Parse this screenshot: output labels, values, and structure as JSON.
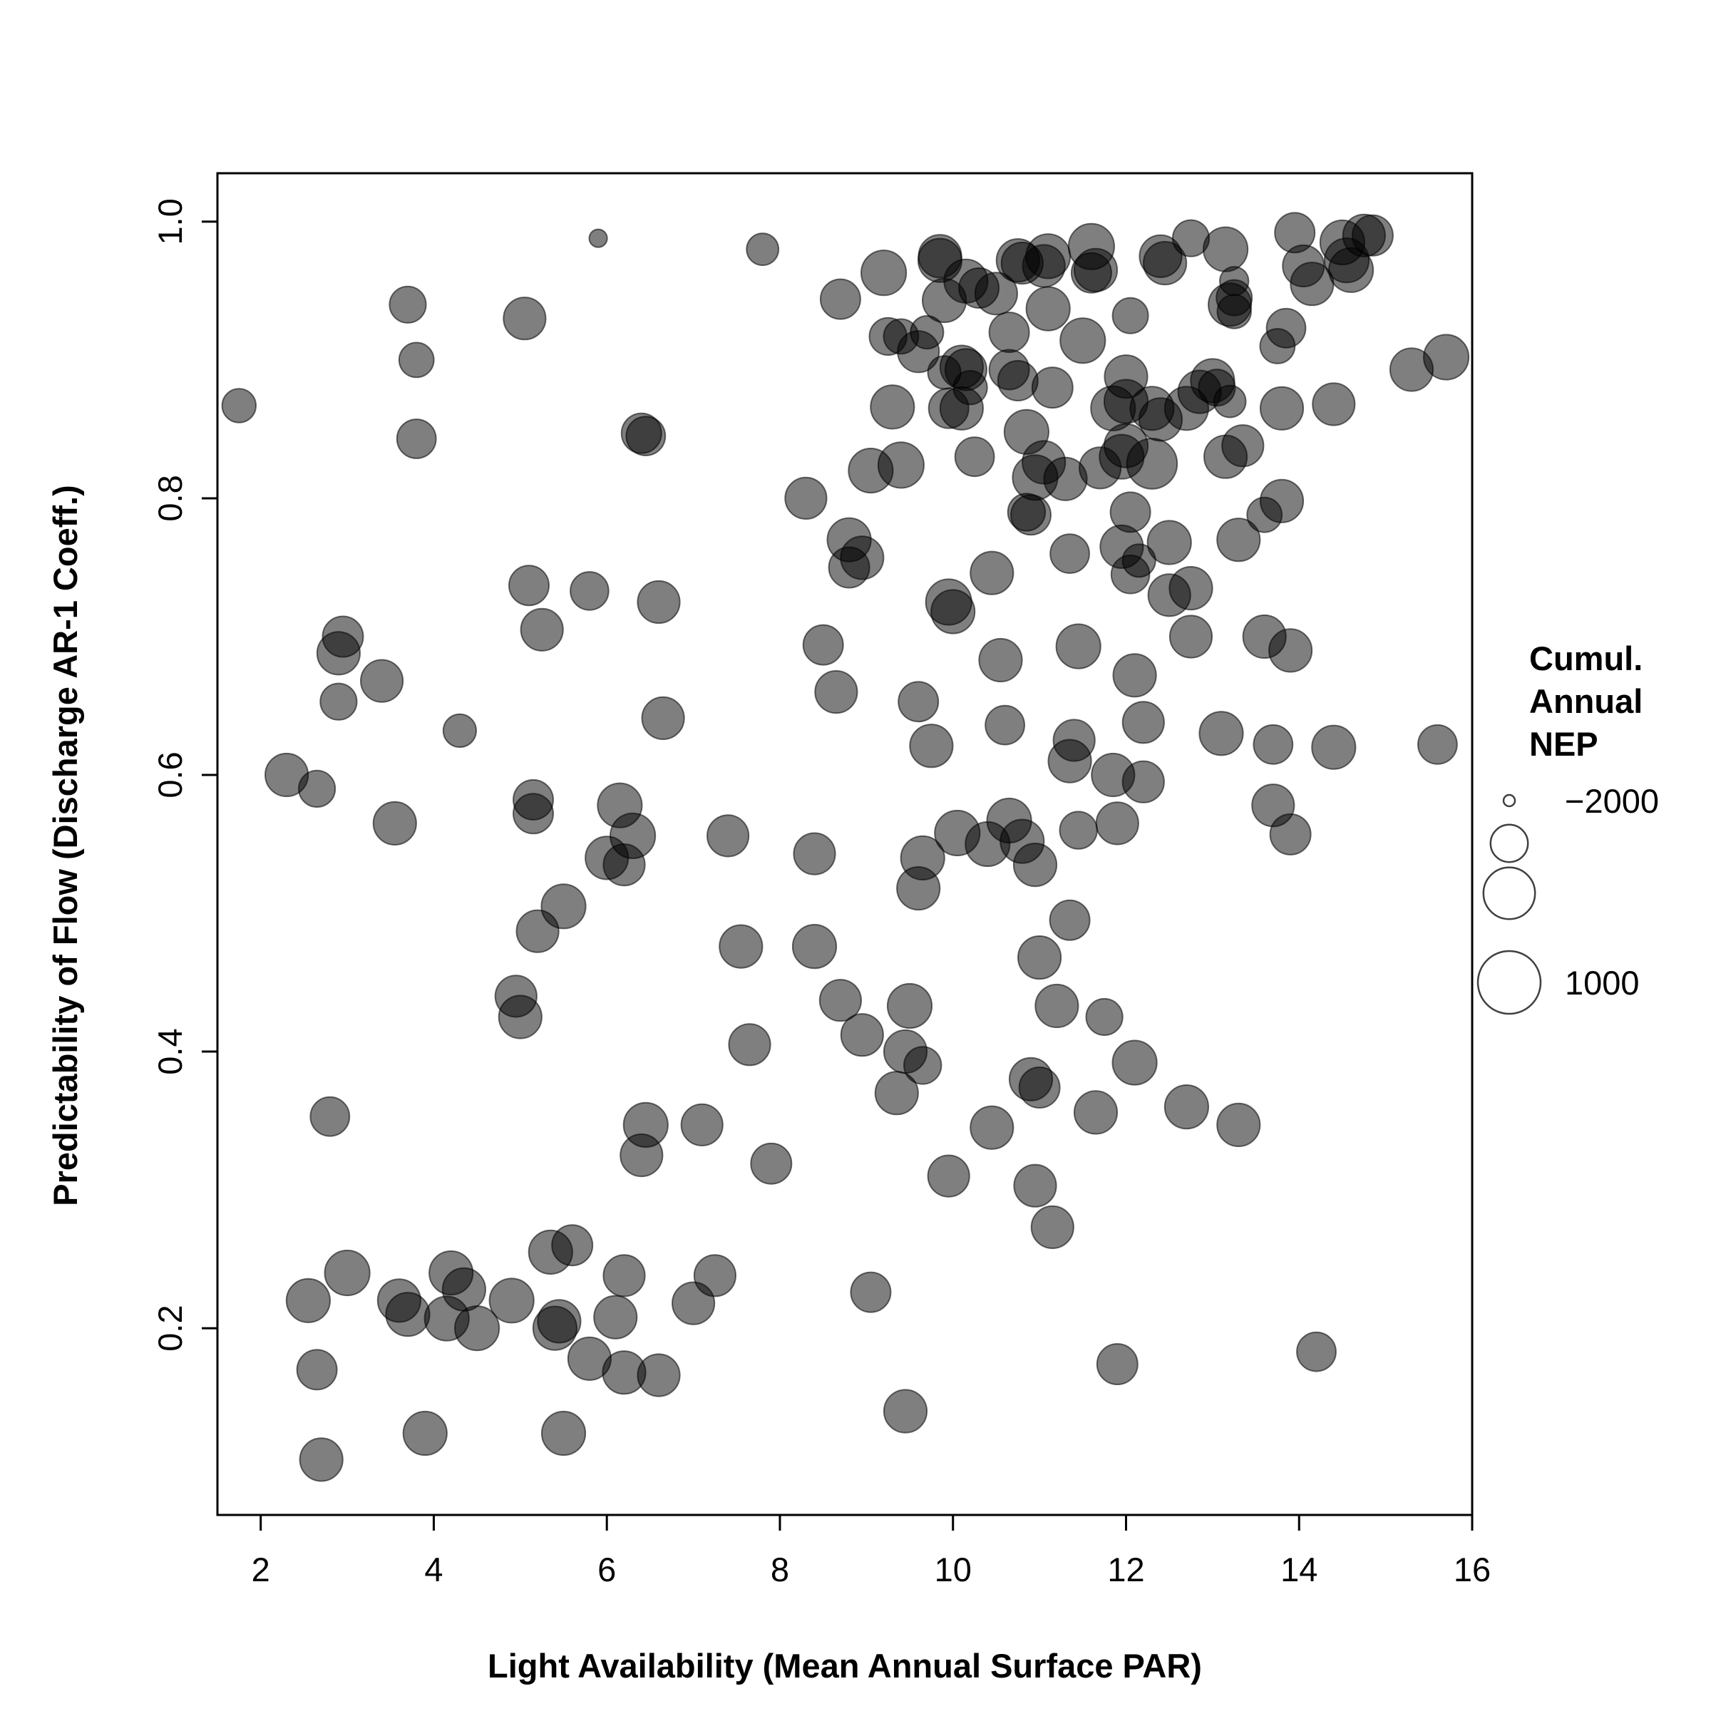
{
  "chart_data": {
    "type": "scatter",
    "title": "",
    "xlabel": "Light Availability (Mean Annual Surface PAR)",
    "ylabel": "Predictability of Flow (Discharge AR-1 Coeff.)",
    "xlim": [
      1.5,
      16.0
    ],
    "ylim": [
      0.065,
      1.035
    ],
    "x_ticks": [
      2,
      4,
      6,
      8,
      10,
      12,
      14,
      16
    ],
    "x_tick_labels": [
      "2",
      "4",
      "6",
      "8",
      "10",
      "12",
      "14",
      "16"
    ],
    "y_ticks": [
      0.2,
      0.4,
      0.6,
      0.8,
      1.0
    ],
    "y_tick_labels": [
      "0.2",
      "0.4",
      "0.6",
      "0.8",
      "1.0"
    ],
    "grid": false,
    "marker_color": "#000000",
    "marker_opacity": 0.5,
    "size_variable": "Cumulative Annual NEP",
    "size_range": [
      -2000,
      1000
    ],
    "legend": {
      "title_lines": [
        "Cumul.",
        "Annual",
        "NEP"
      ],
      "placement": "right",
      "entries": [
        {
          "value": -2000,
          "label": "−2000"
        },
        {
          "value": -1000,
          "label": ""
        },
        {
          "value": 0,
          "label": ""
        },
        {
          "value": 1000,
          "label": "1000"
        }
      ]
    },
    "points": [
      [
        1.75,
        0.867,
        -1200
      ],
      [
        2.3,
        0.6,
        -650
      ],
      [
        2.65,
        0.59,
        -1050
      ],
      [
        2.55,
        0.22,
        -600
      ],
      [
        2.65,
        0.17,
        -850
      ],
      [
        2.7,
        0.105,
        -650
      ],
      [
        3.0,
        0.24,
        -500
      ],
      [
        2.8,
        0.353,
        -900
      ],
      [
        2.9,
        0.688,
        -650
      ],
      [
        2.95,
        0.7,
        -800
      ],
      [
        2.9,
        0.653,
        -1050
      ],
      [
        3.4,
        0.668,
        -700
      ],
      [
        3.55,
        0.565,
        -650
      ],
      [
        3.7,
        0.94,
        -1050
      ],
      [
        3.8,
        0.9,
        -1150
      ],
      [
        3.8,
        0.843,
        -900
      ],
      [
        3.6,
        0.22,
        -650
      ],
      [
        3.7,
        0.21,
        -600
      ],
      [
        3.9,
        0.124,
        -600
      ],
      [
        4.15,
        0.207,
        -550
      ],
      [
        4.2,
        0.24,
        -600
      ],
      [
        4.35,
        0.228,
        -650
      ],
      [
        4.5,
        0.2,
        -550
      ],
      [
        4.3,
        0.632,
        -1250
      ],
      [
        4.9,
        0.22,
        -550
      ],
      [
        4.95,
        0.44,
        -750
      ],
      [
        5.0,
        0.425,
        -650
      ],
      [
        5.05,
        0.93,
        -700
      ],
      [
        5.1,
        0.737,
        -850
      ],
      [
        5.25,
        0.705,
        -700
      ],
      [
        5.15,
        0.582,
        -850
      ],
      [
        5.15,
        0.572,
        -850
      ],
      [
        5.2,
        0.487,
        -700
      ],
      [
        5.5,
        0.505,
        -550
      ],
      [
        5.35,
        0.255,
        -600
      ],
      [
        5.4,
        0.2,
        -600
      ],
      [
        5.45,
        0.205,
        -650
      ],
      [
        5.5,
        0.124,
        -600
      ],
      [
        5.6,
        0.26,
        -800
      ],
      [
        5.8,
        0.733,
        -950
      ],
      [
        5.8,
        0.178,
        -650
      ],
      [
        5.9,
        0.988,
        -1850
      ],
      [
        6.0,
        0.54,
        -650
      ],
      [
        6.1,
        0.208,
        -650
      ],
      [
        6.15,
        0.578,
        -550
      ],
      [
        6.2,
        0.535,
        -750
      ],
      [
        6.3,
        0.556,
        -500
      ],
      [
        6.2,
        0.238,
        -750
      ],
      [
        6.2,
        0.168,
        -650
      ],
      [
        6.4,
        0.847,
        -850
      ],
      [
        6.45,
        0.845,
        -900
      ],
      [
        6.45,
        0.347,
        -550
      ],
      [
        6.4,
        0.325,
        -700
      ],
      [
        6.6,
        0.166,
        -700
      ],
      [
        6.6,
        0.725,
        -700
      ],
      [
        6.65,
        0.641,
        -700
      ],
      [
        7.0,
        0.218,
        -700
      ],
      [
        7.1,
        0.347,
        -750
      ],
      [
        7.25,
        0.238,
        -750
      ],
      [
        7.4,
        0.556,
        -750
      ],
      [
        7.55,
        0.476,
        -650
      ],
      [
        7.65,
        0.405,
        -750
      ],
      [
        7.8,
        0.98,
        -1300
      ],
      [
        7.9,
        0.319,
        -800
      ],
      [
        8.3,
        0.8,
        -750
      ],
      [
        8.4,
        0.476,
        -600
      ],
      [
        8.4,
        0.543,
        -750
      ],
      [
        8.5,
        0.694,
        -850
      ],
      [
        8.65,
        0.66,
        -700
      ],
      [
        8.7,
        0.944,
        -850
      ],
      [
        8.7,
        0.437,
        -750
      ],
      [
        8.8,
        0.77,
        -600
      ],
      [
        8.8,
        0.75,
        -800
      ],
      [
        8.95,
        0.757,
        -650
      ],
      [
        8.95,
        0.412,
        -700
      ],
      [
        9.05,
        0.82,
        -550
      ],
      [
        9.05,
        0.226,
        -850
      ],
      [
        9.2,
        0.963,
        -500
      ],
      [
        9.25,
        0.917,
        -1000
      ],
      [
        9.3,
        0.866,
        -600
      ],
      [
        9.35,
        0.37,
        -650
      ],
      [
        9.4,
        0.824,
        -450
      ],
      [
        9.4,
        0.917,
        -1150
      ],
      [
        9.45,
        0.4,
        -650
      ],
      [
        9.5,
        0.433,
        -550
      ],
      [
        9.45,
        0.14,
        -650
      ],
      [
        9.6,
        0.518,
        -650
      ],
      [
        9.6,
        0.653,
        -850
      ],
      [
        9.65,
        0.54,
        -600
      ],
      [
        9.65,
        0.39,
        -1000
      ],
      [
        9.6,
        0.906,
        -750
      ],
      [
        9.7,
        0.92,
        -1250
      ],
      [
        9.75,
        0.621,
        -650
      ],
      [
        9.85,
        0.975,
        -650
      ],
      [
        9.85,
        0.972,
        -600
      ],
      [
        9.9,
        0.943,
        -600
      ],
      [
        9.9,
        0.891,
        -1250
      ],
      [
        9.95,
        0.865,
        -850
      ],
      [
        9.95,
        0.725,
        -450
      ],
      [
        10.0,
        0.718,
        -600
      ],
      [
        9.95,
        0.31,
        -750
      ],
      [
        10.05,
        0.558,
        -500
      ],
      [
        10.1,
        0.895,
        -650
      ],
      [
        10.1,
        0.865,
        -650
      ],
      [
        10.15,
        0.957,
        -600
      ],
      [
        10.15,
        0.893,
        -750
      ],
      [
        10.2,
        0.88,
        -1200
      ],
      [
        10.25,
        0.83,
        -900
      ],
      [
        10.3,
        0.952,
        -850
      ],
      [
        10.4,
        0.55,
        -550
      ],
      [
        10.45,
        0.746,
        -650
      ],
      [
        10.45,
        0.345,
        -650
      ],
      [
        10.5,
        0.948,
        -700
      ],
      [
        10.55,
        0.683,
        -650
      ],
      [
        10.6,
        0.636,
        -900
      ],
      [
        10.65,
        0.92,
        -850
      ],
      [
        10.65,
        0.893,
        -850
      ],
      [
        10.65,
        0.567,
        -550
      ],
      [
        10.75,
        0.972,
        -650
      ],
      [
        10.75,
        0.885,
        -850
      ],
      [
        10.8,
        0.552,
        -600
      ],
      [
        10.8,
        0.97,
        -750
      ],
      [
        10.85,
        0.848,
        -550
      ],
      [
        10.85,
        0.79,
        -1000
      ],
      [
        10.9,
        0.788,
        -850
      ],
      [
        10.9,
        0.38,
        -650
      ],
      [
        10.95,
        0.815,
        -500
      ],
      [
        10.95,
        0.535,
        -650
      ],
      [
        10.95,
        0.303,
        -700
      ],
      [
        11.0,
        0.468,
        -650
      ],
      [
        11.0,
        0.374,
        -800
      ],
      [
        11.05,
        0.968,
        -700
      ],
      [
        11.05,
        0.826,
        -650
      ],
      [
        11.1,
        0.937,
        -600
      ],
      [
        11.1,
        0.975,
        -550
      ],
      [
        11.15,
        0.88,
        -800
      ],
      [
        11.15,
        0.273,
        -700
      ],
      [
        11.2,
        0.433,
        -650
      ],
      [
        11.3,
        0.814,
        -650
      ],
      [
        11.35,
        0.495,
        -850
      ],
      [
        11.35,
        0.61,
        -650
      ],
      [
        11.35,
        0.76,
        -900
      ],
      [
        11.4,
        0.625,
        -750
      ],
      [
        11.45,
        0.693,
        -550
      ],
      [
        11.45,
        0.56,
        -1000
      ],
      [
        11.5,
        0.914,
        -500
      ],
      [
        11.6,
        0.963,
        -850
      ],
      [
        11.6,
        0.982,
        -450
      ],
      [
        11.65,
        0.356,
        -650
      ],
      [
        11.65,
        0.965,
        -650
      ],
      [
        11.7,
        0.822,
        -750
      ],
      [
        11.75,
        0.425,
        -1050
      ],
      [
        11.85,
        0.6,
        -650
      ],
      [
        11.85,
        0.865,
        -550
      ],
      [
        11.9,
        0.565,
        -700
      ],
      [
        11.9,
        0.174,
        -800
      ],
      [
        11.95,
        0.83,
        -550
      ],
      [
        11.95,
        0.765,
        -650
      ],
      [
        12.0,
        0.888,
        -650
      ],
      [
        12.0,
        0.838,
        -600
      ],
      [
        12.0,
        0.87,
        -600
      ],
      [
        12.05,
        0.79,
        -850
      ],
      [
        12.05,
        0.745,
        -950
      ],
      [
        12.05,
        0.932,
        -1100
      ],
      [
        12.1,
        0.672,
        -650
      ],
      [
        12.1,
        0.392,
        -550
      ],
      [
        12.15,
        0.755,
        -1250
      ],
      [
        12.2,
        0.595,
        -750
      ],
      [
        12.2,
        0.638,
        -750
      ],
      [
        12.3,
        0.865,
        -600
      ],
      [
        12.3,
        0.825,
        -100
      ],
      [
        12.4,
        0.857,
        -650
      ],
      [
        12.4,
        0.975,
        -700
      ],
      [
        12.45,
        0.97,
        -650
      ],
      [
        12.5,
        0.768,
        -600
      ],
      [
        12.5,
        0.73,
        -700
      ],
      [
        12.7,
        0.865,
        -600
      ],
      [
        12.7,
        0.36,
        -600
      ],
      [
        12.75,
        0.735,
        -650
      ],
      [
        12.75,
        0.7,
        -700
      ],
      [
        12.75,
        0.988,
        -1050
      ],
      [
        12.85,
        0.877,
        -650
      ],
      [
        13.0,
        0.885,
        -600
      ],
      [
        13.05,
        0.88,
        -1050
      ],
      [
        13.1,
        0.63,
        -600
      ],
      [
        13.15,
        0.98,
        -550
      ],
      [
        13.15,
        0.83,
        -650
      ],
      [
        13.2,
        0.94,
        -650
      ],
      [
        13.2,
        0.87,
        -1300
      ],
      [
        13.25,
        0.945,
        -1100
      ],
      [
        13.25,
        0.935,
        -1200
      ],
      [
        13.25,
        0.957,
        -1450
      ],
      [
        13.3,
        0.347,
        -650
      ],
      [
        13.3,
        0.77,
        -650
      ],
      [
        13.35,
        0.838,
        -750
      ],
      [
        13.6,
        0.788,
        -1150
      ],
      [
        13.6,
        0.7,
        -650
      ],
      [
        13.7,
        0.622,
        -900
      ],
      [
        13.7,
        0.578,
        -700
      ],
      [
        13.75,
        0.91,
        -1150
      ],
      [
        13.8,
        0.865,
        -650
      ],
      [
        13.8,
        0.798,
        -650
      ],
      [
        13.85,
        0.923,
        -900
      ],
      [
        13.9,
        0.69,
        -650
      ],
      [
        13.9,
        0.557,
        -800
      ],
      [
        13.95,
        0.992,
        -850
      ],
      [
        14.05,
        0.968,
        -750
      ],
      [
        14.15,
        0.955,
        -650
      ],
      [
        14.2,
        0.183,
        -900
      ],
      [
        14.4,
        0.868,
        -700
      ],
      [
        14.4,
        0.62,
        -600
      ],
      [
        14.5,
        0.985,
        -550
      ],
      [
        14.55,
        0.972,
        -550
      ],
      [
        14.6,
        0.965,
        -550
      ],
      [
        14.75,
        0.99,
        -700
      ],
      [
        14.85,
        0.99,
        -800
      ],
      [
        15.3,
        0.893,
        -650
      ],
      [
        15.6,
        0.622,
        -900
      ],
      [
        15.7,
        0.902,
        -500
      ]
    ]
  }
}
